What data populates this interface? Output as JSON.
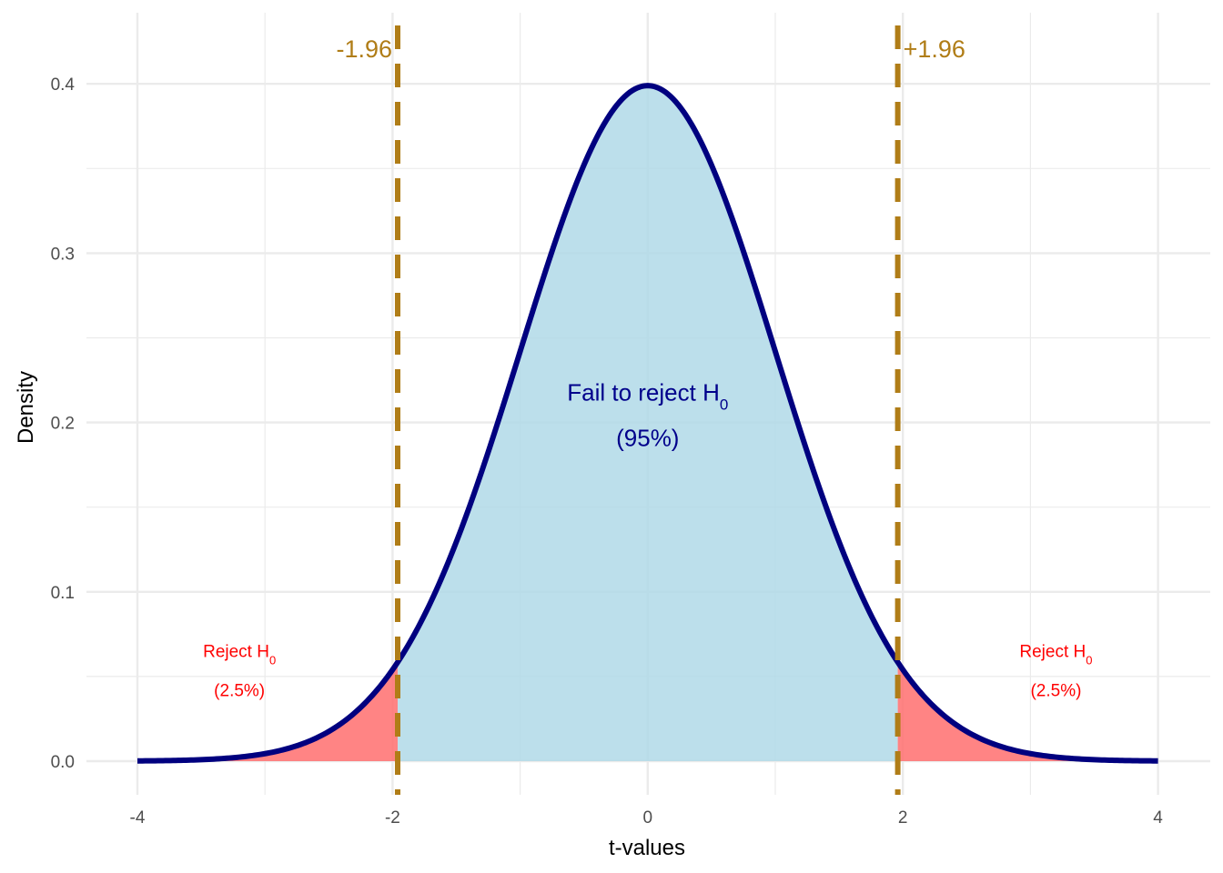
{
  "chart_data": {
    "type": "area",
    "xlabel": "t-values",
    "ylabel": "Density",
    "xlim": [
      -4,
      4
    ],
    "ylim": [
      0,
      0.4
    ],
    "x_ticks": [
      "-4",
      "-2",
      "0",
      "2",
      "4"
    ],
    "y_ticks": [
      "0.0",
      "0.1",
      "0.2",
      "0.3",
      "0.4"
    ],
    "grid": true,
    "critical_values": [
      {
        "x": -1.96,
        "label": "-1.96"
      },
      {
        "x": 1.96,
        "label": "+1.96"
      }
    ],
    "regions": [
      {
        "name": "left-tail",
        "from": -4,
        "to": -1.96,
        "label_main": "Reject H",
        "label_sub": "0",
        "label_pct": "(2.5%)",
        "label_x": -3.2,
        "label_y": 0.0615,
        "pct_y": 0.0385
      },
      {
        "name": "center",
        "from": -1.96,
        "to": 1.96,
        "label_main": "Fail to reject H",
        "label_sub": "0",
        "label_pct": "(95%)",
        "label_x": 0.0,
        "label_y": 0.213,
        "pct_y": 0.186
      },
      {
        "name": "right-tail",
        "from": 1.96,
        "to": 4,
        "label_main": "Reject H",
        "label_sub": "0",
        "label_pct": "(2.5%)",
        "label_x": 3.2,
        "label_y": 0.0615,
        "pct_y": 0.0385
      }
    ],
    "curve": {
      "distribution": "standard normal density",
      "mean": 0,
      "sd": 1
    }
  },
  "colors": {
    "curve": "#00007f",
    "center_fill": "#add8e6",
    "tail_fill": "#ff6f6f",
    "critical_line": "#b07d17",
    "critical_label": "#b07d17",
    "center_label": "#00008b",
    "tail_label": "#ff0000",
    "grid_major": "#ebebeb",
    "grid_minor": "#f3f3f3",
    "tick_text": "#4d4d4d"
  }
}
